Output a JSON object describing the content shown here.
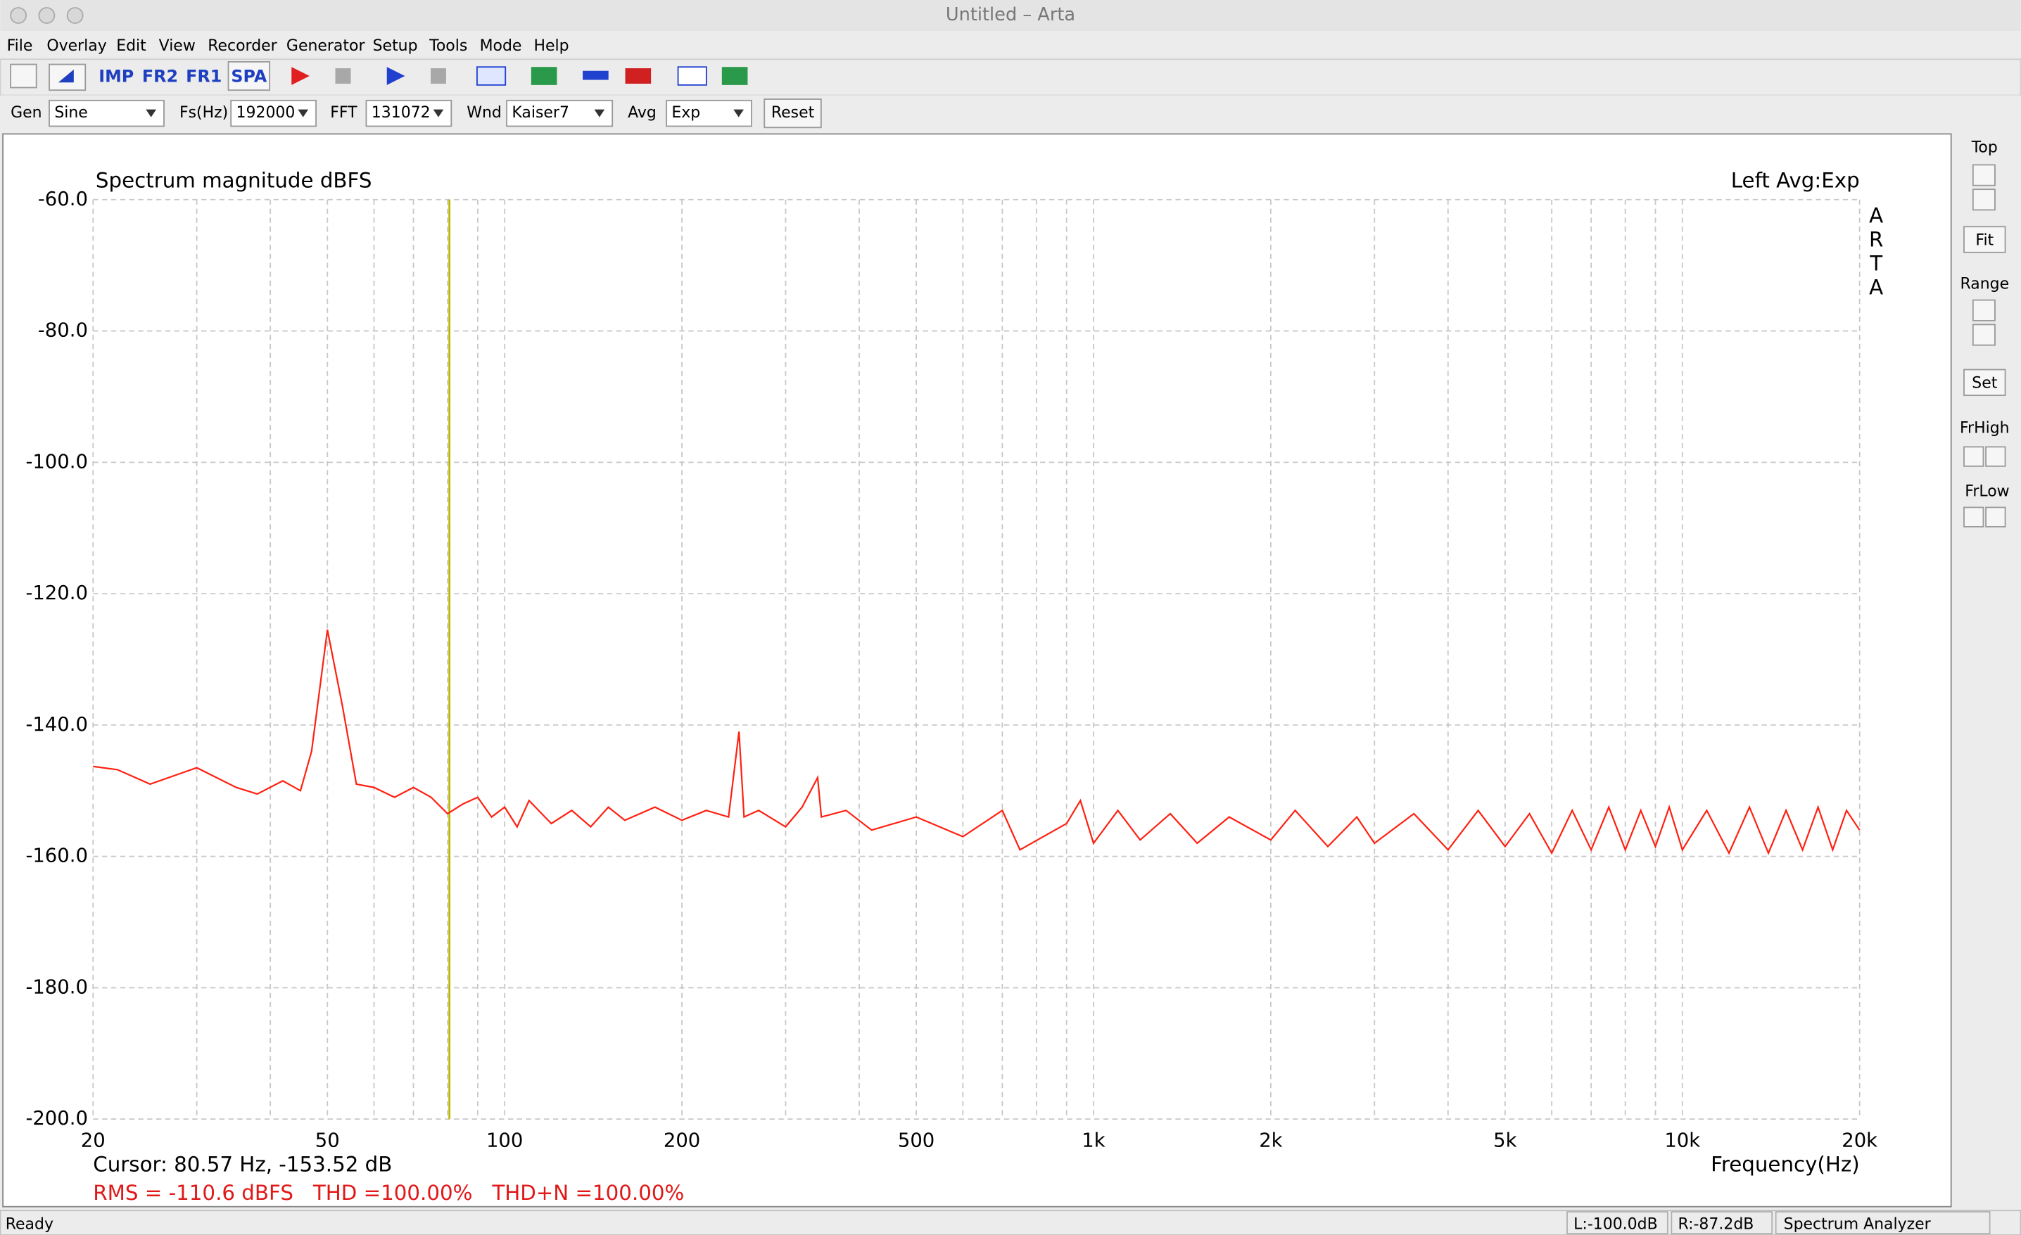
{
  "window": {
    "title": "Untitled – Arta"
  },
  "menu": [
    "File",
    "Overlay",
    "Edit",
    "View",
    "Recorder",
    "Generator",
    "Setup",
    "Tools",
    "Mode",
    "Help"
  ],
  "toolbar": [
    "IMP",
    "FR2",
    "FR1",
    "SPA"
  ],
  "controls": {
    "gen_label": "Gen",
    "gen": "Sine",
    "fs_label": "Fs(Hz)",
    "fs": "192000",
    "fft_label": "FFT",
    "fft": "131072",
    "wnd_label": "Wnd",
    "wnd": "Kaiser7",
    "avg_label": "Avg",
    "avg": "Exp",
    "reset": "Reset"
  },
  "side_panel": {
    "top": "Top",
    "fit": "Fit",
    "range": "Range",
    "set": "Set",
    "frhigh": "FrHigh",
    "frlow": "FrLow"
  },
  "chart_data": {
    "type": "line",
    "title": "Spectrum magnitude dBFS",
    "channel_label": "Left  Avg:Exp",
    "watermark": "ARTA",
    "x_label": "Frequency(Hz)",
    "cursor_text": "Cursor: 80.57 Hz, -153.52 dB",
    "cursor_x": 80.57,
    "cursor_color": "#b8b800",
    "stats_text": "RMS = -110.6 dBFS   THD =100.00%   THD+N =100.00%",
    "stats_color": "#e01818",
    "xscale": "log",
    "grid": true,
    "color": "#ff2010",
    "xlim": [
      20,
      20000
    ],
    "ylim": [
      -200,
      -60
    ],
    "xticks": [
      20,
      50,
      100,
      200,
      500,
      {
        "value": 1000,
        "label": "1k"
      },
      {
        "value": 2000,
        "label": "2k"
      },
      {
        "value": 5000,
        "label": "5k"
      },
      {
        "value": 10000,
        "label": "10k"
      },
      {
        "value": 20000,
        "label": "20k"
      }
    ],
    "xminor_ticks": [
      30,
      40,
      60,
      70,
      80,
      90,
      300,
      400,
      600,
      700,
      800,
      900,
      3000,
      4000,
      6000,
      7000,
      8000,
      9000
    ],
    "yticks": [
      {
        "value": -60,
        "label": "-60.0"
      },
      {
        "value": -80,
        "label": "-80.0"
      },
      {
        "value": -100,
        "label": "-100.0"
      },
      {
        "value": -120,
        "label": "-120.0"
      },
      {
        "value": -140,
        "label": "-140.0"
      },
      {
        "value": -160,
        "label": "-160.0"
      },
      {
        "value": -180,
        "label": "-180.0"
      },
      {
        "value": -200,
        "label": "-200.0"
      }
    ],
    "x": [
      20,
      22,
      25,
      30,
      35,
      38,
      42,
      45,
      47,
      50,
      53,
      56,
      60,
      65,
      70,
      75,
      80,
      85,
      90,
      95,
      100,
      105,
      110,
      120,
      130,
      140,
      150,
      160,
      180,
      200,
      220,
      240,
      250,
      255,
      270,
      300,
      320,
      340,
      345,
      380,
      420,
      500,
      600,
      700,
      750,
      900,
      950,
      1000,
      1100,
      1200,
      1350,
      1500,
      1700,
      2000,
      2200,
      2500,
      2800,
      3000,
      3500,
      4000,
      4500,
      5000,
      5500,
      6000,
      6500,
      7000,
      7500,
      8000,
      8500,
      9000,
      9500,
      10000,
      11000,
      12000,
      13000,
      14000,
      15000,
      16000,
      17000,
      18000,
      19000,
      20000
    ],
    "values": [
      -146.3,
      -146.8,
      -149,
      -146.5,
      -149.5,
      -150.5,
      -148.5,
      -150,
      -144,
      -125.5,
      -137,
      -149,
      -149.5,
      -151,
      -149.5,
      -151,
      -153.5,
      -152,
      -151,
      -154,
      -152.5,
      -155.5,
      -151.5,
      -155,
      -153,
      -155.5,
      -152.5,
      -154.5,
      -152.5,
      -154.5,
      -153,
      -154,
      -141,
      -154,
      -153,
      -155.5,
      -152.5,
      -148,
      -154,
      -153,
      -156,
      -154,
      -157,
      -153,
      -159,
      -155,
      -151.5,
      -158,
      -153,
      -157.5,
      -153.5,
      -158,
      -154,
      -157.5,
      -153,
      -158.5,
      -154,
      -158,
      -153.5,
      -159,
      -153,
      -158.5,
      -153.5,
      -159.5,
      -153,
      -159,
      -152.5,
      -159,
      -153,
      -158.5,
      -152.5,
      -159,
      -153,
      -159.5,
      -152.5,
      -159.5,
      -153,
      -159,
      -152.5,
      -159,
      -153,
      -156
    ]
  },
  "status": {
    "ready": "Ready",
    "left": "L:-100.0dB",
    "right": "R:-87.2dB",
    "mode": "Spectrum Analyzer"
  }
}
